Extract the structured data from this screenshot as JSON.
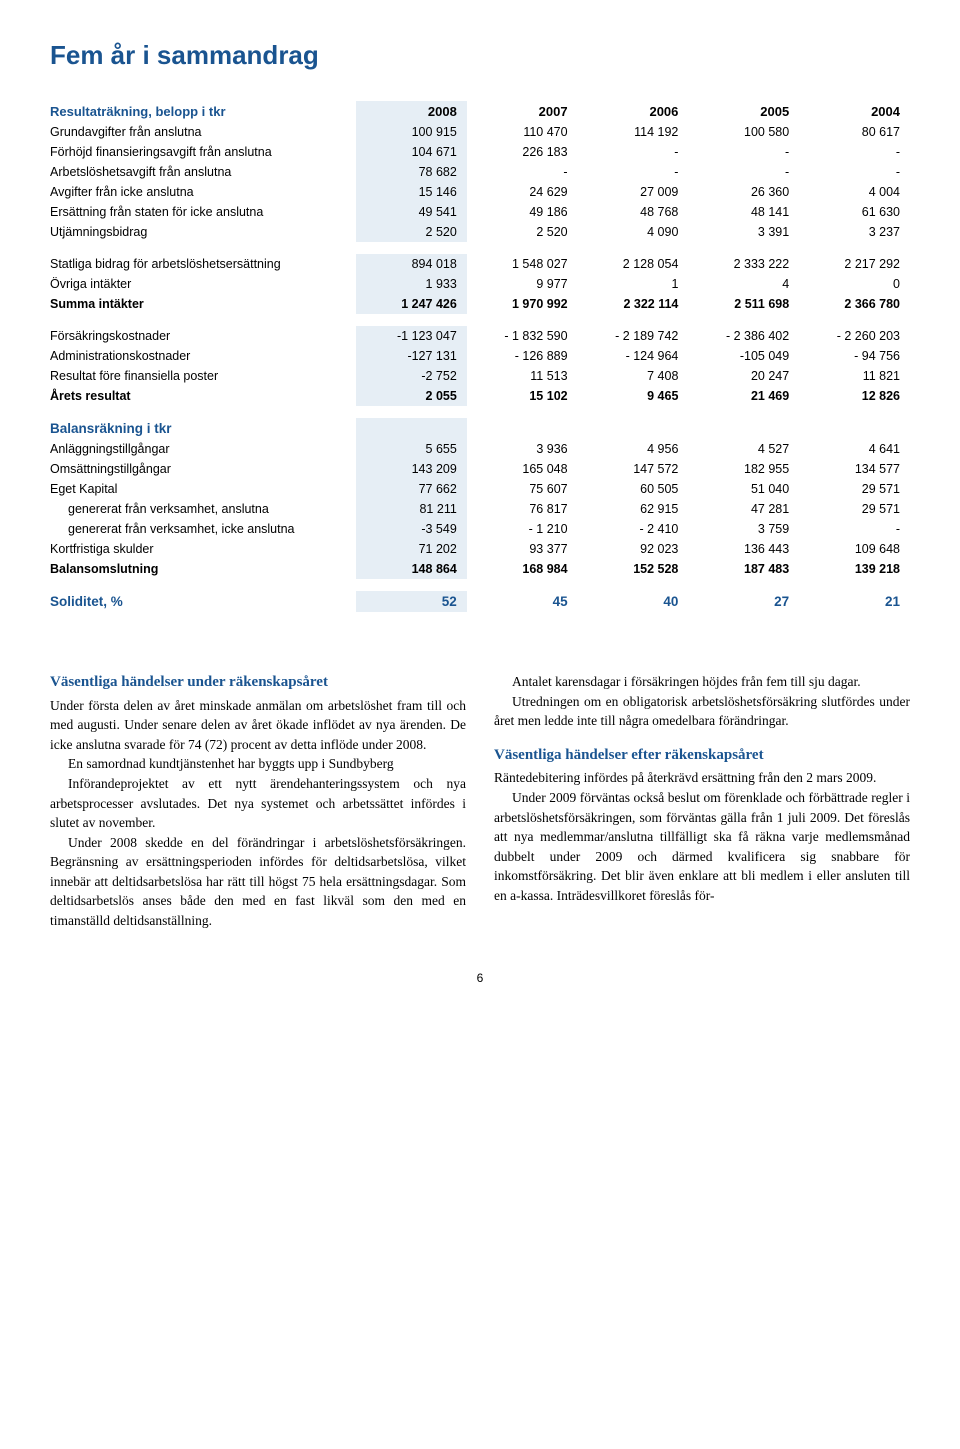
{
  "page_title": "Fem år i sammandrag",
  "headers": {
    "section1": "Resultaträkning, belopp i tkr",
    "section2": "Balansräkning i tkr",
    "soliditet_label": "Soliditet, %"
  },
  "years": [
    "2008",
    "2007",
    "2006",
    "2005",
    "2004"
  ],
  "income": [
    {
      "label": "Grundavgifter från anslutna",
      "v": [
        "100 915",
        "110 470",
        "114 192",
        "100 580",
        "80 617"
      ],
      "bold": false
    },
    {
      "label": "Förhöjd finansieringsavgift från anslutna",
      "v": [
        "104 671",
        "226 183",
        "-",
        "-",
        "-"
      ],
      "bold": false
    },
    {
      "label": "Arbetslöshetsavgift från anslutna",
      "v": [
        "78 682",
        "-",
        "-",
        "-",
        "-"
      ],
      "bold": false
    },
    {
      "label": "Avgifter från icke anslutna",
      "v": [
        "15 146",
        "24 629",
        "27 009",
        "26 360",
        "4 004"
      ],
      "bold": false
    },
    {
      "label": "Ersättning från staten för icke anslutna",
      "v": [
        "49 541",
        "49 186",
        "48 768",
        "48 141",
        "61 630"
      ],
      "bold": false
    },
    {
      "label": "Utjämningsbidrag",
      "v": [
        "2 520",
        "2 520",
        "4 090",
        "3 391",
        "3 237"
      ],
      "bold": false
    },
    {
      "label": "Statliga bidrag för arbetslöshetsersättning",
      "v": [
        "894 018",
        "1 548 027",
        "2 128 054",
        "2 333 222",
        "2 217 292"
      ],
      "bold": false,
      "gap_before": true
    },
    {
      "label": "Övriga intäkter",
      "v": [
        "1 933",
        "9 977",
        "1",
        "4",
        "0"
      ],
      "bold": false
    },
    {
      "label": "Summa intäkter",
      "v": [
        "1 247 426",
        "1 970 992",
        "2 322 114",
        "2 511 698",
        "2 366 780"
      ],
      "bold": true
    },
    {
      "label": "Försäkringskostnader",
      "v": [
        "-1 123 047",
        "- 1 832 590",
        "- 2 189 742",
        "- 2 386 402",
        "- 2 260 203"
      ],
      "bold": false,
      "gap_before": true
    },
    {
      "label": "Administrationskostnader",
      "v": [
        "-127 131",
        "- 126 889",
        "- 124 964",
        "-105 049",
        "- 94 756"
      ],
      "bold": false
    },
    {
      "label": "Resultat före finansiella poster",
      "v": [
        "-2 752",
        "11 513",
        "7 408",
        "20 247",
        "11 821"
      ],
      "bold": false
    },
    {
      "label": "Årets resultat",
      "v": [
        "2 055",
        "15 102",
        "9 465",
        "21 469",
        "12 826"
      ],
      "bold": true
    }
  ],
  "balance": [
    {
      "label": "Anläggningstillgångar",
      "v": [
        "5 655",
        "3 936",
        "4 956",
        "4 527",
        "4 641"
      ],
      "bold": false
    },
    {
      "label": "Omsättningstillgångar",
      "v": [
        "143 209",
        "165 048",
        "147 572",
        "182 955",
        "134 577"
      ],
      "bold": false
    },
    {
      "label": "Eget Kapital",
      "v": [
        "77 662",
        "75 607",
        "60 505",
        "51 040",
        "29 571"
      ],
      "bold": false
    },
    {
      "label": "genererat från verksamhet, anslutna",
      "v": [
        "81 211",
        "76 817",
        "62 915",
        "47 281",
        "29 571"
      ],
      "bold": false,
      "indent": true
    },
    {
      "label": "genererat från verksamhet, icke anslutna",
      "v": [
        "-3 549",
        "- 1 210",
        "- 2 410",
        "3 759",
        "-"
      ],
      "bold": false,
      "indent": true
    },
    {
      "label": "Kortfristiga skulder",
      "v": [
        "71 202",
        "93 377",
        "92 023",
        "136 443",
        "109 648"
      ],
      "bold": false
    },
    {
      "label": "Balansomslutning",
      "v": [
        "148 864",
        "168 984",
        "152 528",
        "187 483",
        "139 218"
      ],
      "bold": true
    }
  ],
  "soliditet": [
    "52",
    "45",
    "40",
    "27",
    "21"
  ],
  "body": {
    "h1": "Väsentliga händelser under räkenskapsåret",
    "p1": "Under första delen av året minskade anmälan om arbetslöshet fram till och med augusti. Under senare delen av året ökade inflödet av nya ärenden. De icke anslutna svarade för 74 (72) procent av detta inflöde under 2008.",
    "p2": "En samordnad kundtjänstenhet har byggts upp i Sundbyberg",
    "p3": "Införandeprojektet av ett nytt ärendehanteringssystem och nya arbetsprocesser avslutades. Det nya systemet och arbetssättet infördes i slutet av november.",
    "p4": "Under 2008 skedde en del förändringar i arbetslöshetsförsäkringen. Begränsning av ersättningsperioden infördes för deltidsarbetslösa, vilket innebär att deltidsarbetslösa har rätt till högst 75 hela ersättningsdagar. Som deltidsarbetslös anses både den med en fast likväl som den med en timanställd deltidsanställning.",
    "p5": "Antalet karensdagar i försäkringen höjdes från fem till sju dagar.",
    "p6": "Utredningen om en obligatorisk arbetslöshetsförsäkring slutfördes under året men ledde inte till några omedelbara förändringar.",
    "h2": "Väsentliga händelser efter räkenskapsåret",
    "p7": "Räntedebitering infördes på återkrävd ersättning från den 2 mars 2009.",
    "p8": "Under 2009 förväntas också beslut om förenklade och förbättrade regler i arbetslöshetsförsäkringen, som förväntas gälla från 1 juli 2009. Det föreslås att nya medlemmar/anslutna tillfälligt ska få räkna varje medlemsmånad dubbelt under 2009 och därmed kvalificera sig snabbare för inkomstförsäkring. Det blir även enklare att bli medlem i eller ansluten till en a-kassa. Inträdesvillkoret föreslås för-"
  },
  "pagenum": "6"
}
